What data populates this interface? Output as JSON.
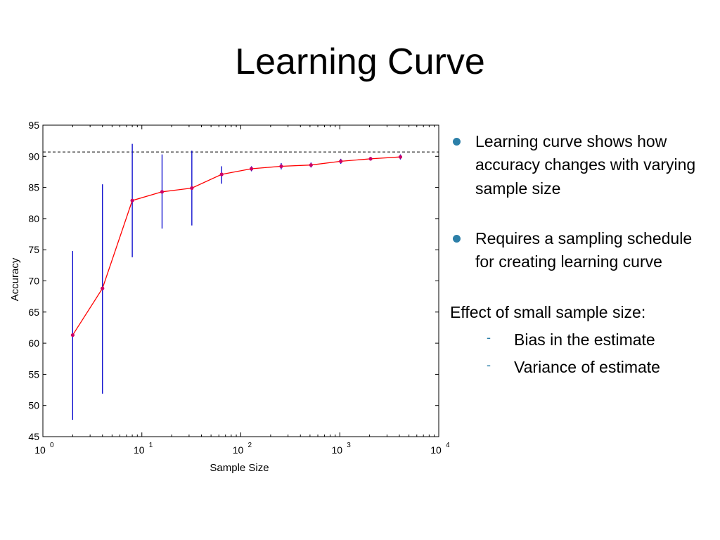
{
  "slide": {
    "title": "Learning Curve",
    "bullets": [
      "Learning curve shows how accuracy changes with varying sample size",
      "Requires a sampling schedule for creating learning curve"
    ],
    "section_label": "Effect of small sample size:",
    "sub_bullets": [
      "Bias in the estimate",
      "Variance of estimate"
    ],
    "bullet_color": "#2c7fa8"
  },
  "chart_data": {
    "type": "line",
    "xlabel": "Sample Size",
    "ylabel": "Accuracy",
    "xscale": "log",
    "xlim": [
      1,
      10000
    ],
    "ylim": [
      45,
      95
    ],
    "yticks": [
      45,
      50,
      55,
      60,
      65,
      70,
      75,
      80,
      85,
      90,
      95
    ],
    "xticks": [
      {
        "value": 1,
        "base": "10",
        "exp": "0"
      },
      {
        "value": 10,
        "base": "10",
        "exp": "1"
      },
      {
        "value": 100,
        "base": "10",
        "exp": "2"
      },
      {
        "value": 1000,
        "base": "10",
        "exp": "3"
      },
      {
        "value": 10000,
        "base": "10",
        "exp": "4"
      }
    ],
    "x": [
      2,
      4,
      8,
      16,
      32,
      64,
      128,
      256,
      512,
      1024,
      2048,
      4096
    ],
    "y": [
      61.3,
      68.8,
      82.9,
      84.3,
      84.9,
      87.1,
      88.0,
      88.4,
      88.6,
      89.2,
      89.6,
      89.9
    ],
    "error_low": [
      47.7,
      51.9,
      73.8,
      78.4,
      78.9,
      85.6,
      87.6,
      87.9,
      88.2,
      88.8,
      89.3,
      89.5
    ],
    "error_high": [
      74.8,
      85.5,
      92.0,
      90.3,
      90.9,
      88.4,
      88.4,
      88.9,
      89.0,
      89.6,
      89.9,
      90.3
    ],
    "reference_line": 90.7,
    "line_color": "#ff0000",
    "errorbar_color": "#0000cc",
    "marker_color": "#cc0066"
  }
}
